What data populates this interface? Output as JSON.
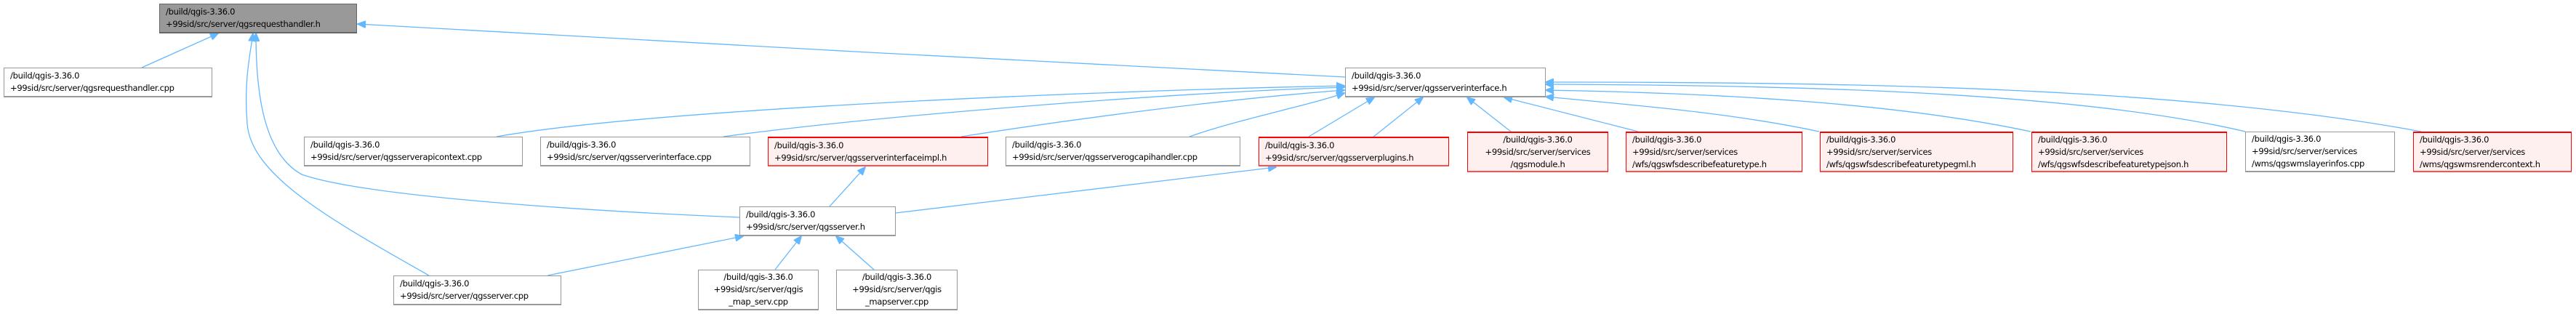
{
  "diagram": {
    "edge_color": "#63b8ff",
    "focus_fill": "#999999",
    "truncated_border": "#ff0000",
    "nodes": {
      "requesthandler_h": {
        "label": "/build/qgis-3.36.0\n+99sid/src/server/qgsrequesthandler.h"
      },
      "requesthandler_cpp": {
        "label": "/build/qgis-3.36.0\n+99sid/src/server/qgsrequesthandler.cpp"
      },
      "serverinterface_h": {
        "label": "/build/qgis-3.36.0\n+99sid/src/server/qgsserverinterface.h"
      },
      "serverapicontext_cpp": {
        "label": "/build/qgis-3.36.0\n+99sid/src/server/qgsserverapicontext.cpp"
      },
      "serverinterface_cpp": {
        "label": "/build/qgis-3.36.0\n+99sid/src/server/qgsserverinterface.cpp"
      },
      "serverinterfaceimpl_h": {
        "label": "/build/qgis-3.36.0\n+99sid/src/server/qgsserverinterfaceimpl.h"
      },
      "serverogcapihandler_cpp": {
        "label": "/build/qgis-3.36.0\n+99sid/src/server/qgsserverogcapihandler.cpp"
      },
      "serverplugins_h": {
        "label": "/build/qgis-3.36.0\n+99sid/src/server/qgsserverplugins.h"
      },
      "module_h": {
        "label": "/build/qgis-3.36.0\n+99sid/src/server/services\n/qgsmodule.h"
      },
      "wfsdescribefeaturetype_h": {
        "label": "/build/qgis-3.36.0\n+99sid/src/server/services\n/wfs/qgswfsdescribefeaturetype.h"
      },
      "wfsdescribefeaturetypegml_h": {
        "label": "/build/qgis-3.36.0\n+99sid/src/server/services\n/wfs/qgswfsdescribefeaturetypegml.h"
      },
      "wfsdescribefeaturetypejson_h": {
        "label": "/build/qgis-3.36.0\n+99sid/src/server/services\n/wfs/qgswfsdescribefeaturetypejson.h"
      },
      "wmslayerinfos_cpp": {
        "label": "/build/qgis-3.36.0\n+99sid/src/server/services\n/wms/qgswmslayerinfos.cpp"
      },
      "wmsrendercontext_h": {
        "label": "/build/qgis-3.36.0\n+99sid/src/server/services\n/wms/qgswmsrendercontext.h"
      },
      "server_h": {
        "label": "/build/qgis-3.36.0\n+99sid/src/server/qgsserver.h"
      },
      "server_cpp": {
        "label": "/build/qgis-3.36.0\n+99sid/src/server/qgsserver.cpp"
      },
      "qgis_map_serv_cpp": {
        "label": "/build/qgis-3.36.0\n+99sid/src/server/qgis\n_map_serv.cpp"
      },
      "qgis_mapserver_cpp": {
        "label": "/build/qgis-3.36.0\n+99sid/src/server/qgis\n_mapserver.cpp"
      }
    }
  }
}
